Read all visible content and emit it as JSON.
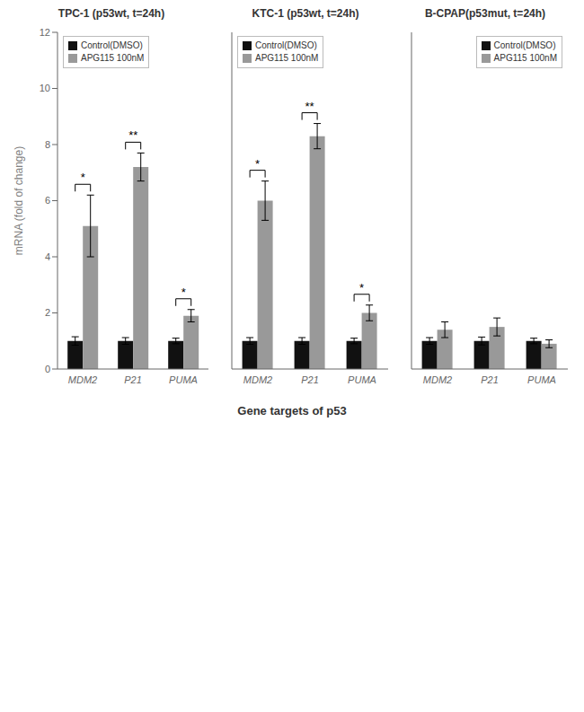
{
  "chart_data": [
    {
      "type": "bar",
      "title": "TPC-1 (p53wt, t=24h)",
      "ylabel": "mRNA (fold of change)",
      "categories": [
        "MDM2",
        "P21",
        "PUMA"
      ],
      "series": [
        {
          "name": "Control(DMSO)",
          "color": "#111111",
          "values": [
            1.0,
            1.0,
            1.0
          ],
          "errors": [
            0.15,
            0.12,
            0.1
          ]
        },
        {
          "name": "APG115 100nM",
          "color": "#999999",
          "values": [
            5.1,
            7.2,
            1.9
          ],
          "errors": [
            1.1,
            0.5,
            0.22
          ]
        }
      ],
      "ylim": [
        0,
        12
      ],
      "yticks": [
        0,
        2,
        4,
        6,
        8,
        10,
        12
      ],
      "legend": "upper left",
      "annotations": [
        {
          "x": "MDM2",
          "text": "*"
        },
        {
          "x": "P21",
          "text": "**"
        },
        {
          "x": "PUMA",
          "text": "*"
        }
      ]
    },
    {
      "type": "bar",
      "title": "KTC-1 (p53wt, t=24h)",
      "xlabel": "Gene targets of p53",
      "categories": [
        "MDM2",
        "P21",
        "PUMA"
      ],
      "series": [
        {
          "name": "Control(DMSO)",
          "color": "#111111",
          "values": [
            1.0,
            1.0,
            1.0
          ],
          "errors": [
            0.12,
            0.12,
            0.1
          ]
        },
        {
          "name": "APG115 100nM",
          "color": "#999999",
          "values": [
            6.0,
            8.3,
            2.0
          ],
          "errors": [
            0.7,
            0.45,
            0.28
          ]
        }
      ],
      "ylim": [
        0,
        12
      ],
      "yticks": [
        0,
        2,
        4,
        6,
        8,
        10,
        12
      ],
      "legend": "upper left",
      "tick_labels": "x",
      "annotations": [
        {
          "x": "MDM2",
          "text": "*"
        },
        {
          "x": "P21",
          "text": "**"
        },
        {
          "x": "PUMA",
          "text": "*"
        }
      ]
    },
    {
      "type": "bar",
      "title": "B-CPAP(p53mut, t=24h)",
      "categories": [
        "MDM2",
        "P21",
        "PUMA"
      ],
      "series": [
        {
          "name": "Control(DMSO)",
          "color": "#111111",
          "values": [
            1.0,
            1.0,
            1.0
          ],
          "errors": [
            0.12,
            0.14,
            0.1
          ]
        },
        {
          "name": "APG115 100nM",
          "color": "#999999",
          "values": [
            1.4,
            1.5,
            0.9
          ],
          "errors": [
            0.28,
            0.32,
            0.14
          ]
        }
      ],
      "ylim": [
        0,
        12
      ],
      "yticks": [
        0,
        2,
        4,
        6,
        8,
        10,
        12
      ],
      "legend": "upper right",
      "tick_labels": "x"
    }
  ]
}
